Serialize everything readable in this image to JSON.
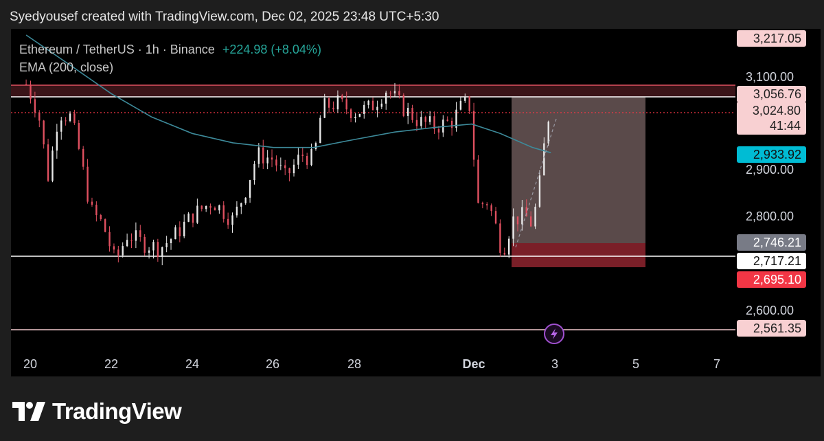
{
  "header": {
    "created_text": "Syedyousef created with TradingView.com, Dec 02, 2025 23:48 UTC+5:30"
  },
  "legend": {
    "symbol": "Ethereum / TetherUS · 1h · Binance",
    "change": "+224.98 (+8.04%)",
    "indicator": "EMA (200, close)"
  },
  "price_axis": {
    "ticks": [
      "3,100.00",
      "2,900.00",
      "2,800.00",
      "2,600.00"
    ],
    "tags": {
      "top": "3,217.05",
      "zone_top": "3,056.76",
      "current": "3,024.80",
      "countdown": "41:44",
      "ema": "2,933.92",
      "entry": "2,746.21",
      "support": "2,717.21",
      "stop": "2,695.10",
      "low": "2,561.35"
    }
  },
  "time_axis": {
    "labels": [
      "20",
      "22",
      "24",
      "26",
      "28",
      "Dec",
      "3",
      "5",
      "7"
    ]
  },
  "footer": {
    "brand": "TradingView"
  },
  "colors": {
    "up": "#e8e8e8",
    "down": "#e05060",
    "ema": "#3d8a9a",
    "resistance_zone": "#3a1418",
    "target_box": "#5a4a4a",
    "stop_box": "#7a1f28",
    "change_green": "#26a69a"
  },
  "chart_data": {
    "type": "candlestick",
    "symbol": "Ethereum / TetherUS",
    "interval": "1h",
    "exchange": "Binance",
    "x_labels": [
      "20",
      "22",
      "24",
      "26",
      "28",
      "Dec",
      "3",
      "5",
      "7"
    ],
    "ylim": [
      2520,
      3250
    ],
    "last_price": 3024.8,
    "change": "+224.98 (+8.04%)",
    "ema_200": 2933.92,
    "horizontal_levels": [
      3056.76,
      3024.8,
      2717.21,
      2561.35
    ],
    "resistance_zone": [
      3056.76,
      3080
    ],
    "position": {
      "entry": 2746.21,
      "target": 3056.76,
      "stop": 2695.1
    },
    "close_path": [
      {
        "day": 19.9,
        "price": 3080
      },
      {
        "day": 20.2,
        "price": 3020
      },
      {
        "day": 20.45,
        "price": 2880
      },
      {
        "day": 20.7,
        "price": 3020
      },
      {
        "day": 21.0,
        "price": 3010
      },
      {
        "day": 21.2,
        "price": 2940
      },
      {
        "day": 21.5,
        "price": 2810
      },
      {
        "day": 21.8,
        "price": 2780
      },
      {
        "day": 22.1,
        "price": 2700
      },
      {
        "day": 22.4,
        "price": 2760
      },
      {
        "day": 22.8,
        "price": 2740
      },
      {
        "day": 23.2,
        "price": 2730
      },
      {
        "day": 23.6,
        "price": 2760
      },
      {
        "day": 24.0,
        "price": 2800
      },
      {
        "day": 24.5,
        "price": 2830
      },
      {
        "day": 25.0,
        "price": 2790
      },
      {
        "day": 25.3,
        "price": 2850
      },
      {
        "day": 25.6,
        "price": 2930
      },
      {
        "day": 26.0,
        "price": 2920
      },
      {
        "day": 26.3,
        "price": 2880
      },
      {
        "day": 26.7,
        "price": 2930
      },
      {
        "day": 27.0,
        "price": 2920
      },
      {
        "day": 27.2,
        "price": 3030
      },
      {
        "day": 27.6,
        "price": 3040
      },
      {
        "day": 28.0,
        "price": 3020
      },
      {
        "day": 28.4,
        "price": 3030
      },
      {
        "day": 28.8,
        "price": 3070
      },
      {
        "day": 29.2,
        "price": 3030
      },
      {
        "day": 29.6,
        "price": 3000
      },
      {
        "day": 30.0,
        "price": 2990
      },
      {
        "day": 30.4,
        "price": 3000
      },
      {
        "day": 30.7,
        "price": 3040
      },
      {
        "day": 30.9,
        "price": 3030
      },
      {
        "day": 31.0,
        "price": 2820
      },
      {
        "day": 31.3,
        "price": 2830
      },
      {
        "day": 31.55,
        "price": 2760
      },
      {
        "day": 31.65,
        "price": 2720
      },
      {
        "day": 31.9,
        "price": 2790
      },
      {
        "day": 32.2,
        "price": 2800
      },
      {
        "day": 32.4,
        "price": 2780
      },
      {
        "day": 32.6,
        "price": 2880
      },
      {
        "day": 32.75,
        "price": 3000
      },
      {
        "day": 32.85,
        "price": 3024.8
      }
    ],
    "ema_path": [
      {
        "day": 19.9,
        "price": 3185
      },
      {
        "day": 21.0,
        "price": 3120
      },
      {
        "day": 22.0,
        "price": 3060
      },
      {
        "day": 23.0,
        "price": 3010
      },
      {
        "day": 24.0,
        "price": 2975
      },
      {
        "day": 25.0,
        "price": 2955
      },
      {
        "day": 26.0,
        "price": 2945
      },
      {
        "day": 27.0,
        "price": 2945
      },
      {
        "day": 28.0,
        "price": 2962
      },
      {
        "day": 29.0,
        "price": 2978
      },
      {
        "day": 30.0,
        "price": 2988
      },
      {
        "day": 30.9,
        "price": 2995
      },
      {
        "day": 31.6,
        "price": 2975
      },
      {
        "day": 32.4,
        "price": 2945
      },
      {
        "day": 32.85,
        "price": 2933.92
      }
    ]
  }
}
